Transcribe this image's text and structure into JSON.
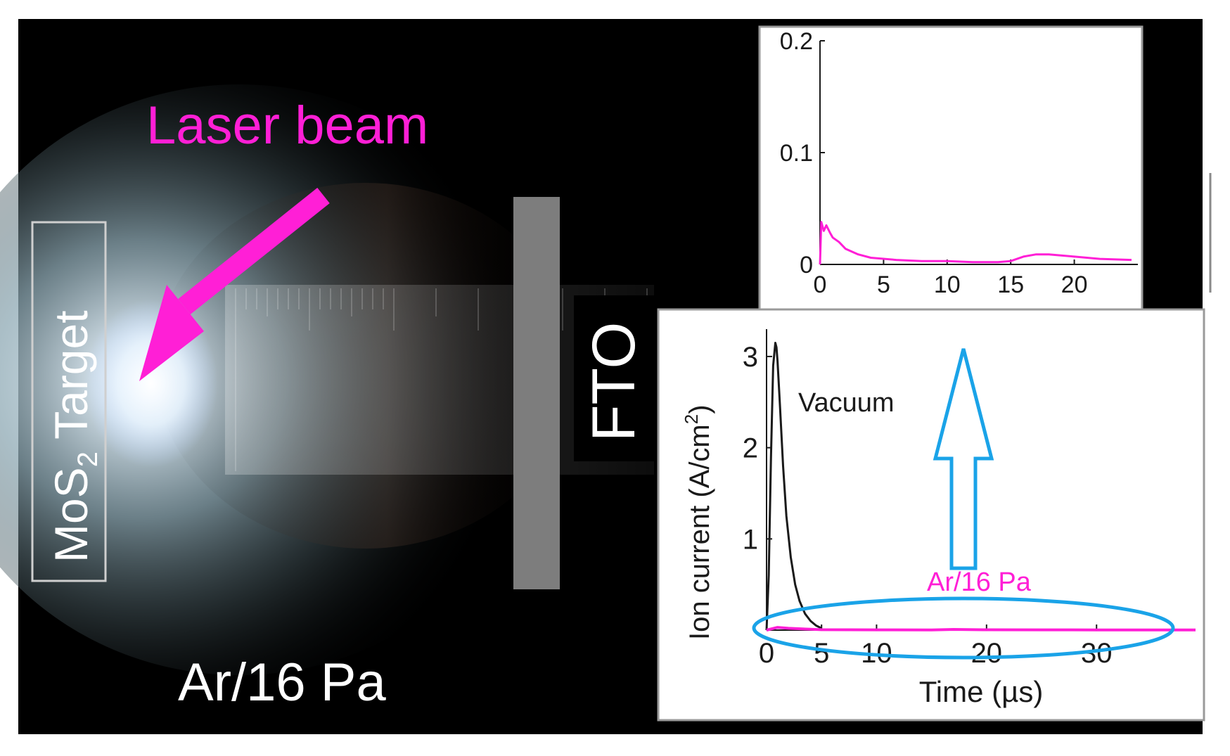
{
  "labels": {
    "laser": "Laser beam",
    "target_main": "MoS",
    "target_sub": "2",
    "target_word": "Target",
    "fto": "FTO",
    "pressure": "Ar/16 Pa"
  },
  "colors": {
    "laser": "#ff1fd6",
    "panel_border": "#9a9a9a",
    "substrate": "#7d7d7d",
    "vacuum_trace": "#1a1a1a",
    "argon_trace": "#ff1fd6",
    "annotation": "#1aa3e8"
  },
  "chart_data": [
    {
      "type": "line",
      "title": "",
      "xlabel": "Time (µs)",
      "ylabel": "Ion current (A/cm²)",
      "ylabel_main": "Ion current (A/cm",
      "ylabel_sup": "2",
      "ylabel_end": ")",
      "xlim": [
        0,
        39
      ],
      "ylim": [
        0,
        3.3
      ],
      "xticks": [
        "0",
        "10",
        "20",
        "30"
      ],
      "xtick_values": [
        0,
        10,
        20,
        30
      ],
      "xtick_5": "5",
      "yticks": [
        "1",
        "2",
        "3"
      ],
      "ytick_values": [
        1,
        2,
        3
      ],
      "grid": false,
      "series": [
        {
          "name": "Vacuum",
          "x": [
            0,
            0.2,
            0.4,
            0.6,
            0.8,
            0.9,
            1.0,
            1.2,
            1.5,
            1.8,
            2.2,
            2.6,
            3.0,
            3.5,
            4.0,
            4.5,
            5.0
          ],
          "y": [
            0,
            0.6,
            1.9,
            2.9,
            3.15,
            3.1,
            2.95,
            2.5,
            1.8,
            1.25,
            0.8,
            0.5,
            0.32,
            0.18,
            0.1,
            0.05,
            0.02
          ]
        },
        {
          "name": "Ar/16 Pa",
          "x": [
            0,
            1,
            2,
            5,
            10,
            15,
            17,
            20,
            25,
            30,
            35,
            39
          ],
          "y": [
            0,
            0.03,
            0.02,
            0.005,
            0.003,
            0.002,
            0.008,
            0.004,
            0.003,
            0.002,
            0.002,
            0.002
          ]
        }
      ]
    },
    {
      "type": "line",
      "title": "",
      "xlabel": "",
      "ylabel": "",
      "xlim": [
        0,
        25
      ],
      "ylim": [
        0,
        0.2
      ],
      "xticks": [
        "0",
        "5",
        "10",
        "15",
        "20"
      ],
      "xtick_values": [
        0,
        5,
        10,
        15,
        20
      ],
      "yticks": [
        "0",
        "0.1",
        "0.2"
      ],
      "ytick_values": [
        0,
        0.1,
        0.2
      ],
      "grid": false,
      "series": [
        {
          "name": "Ar/16 Pa",
          "x": [
            0,
            0.1,
            0.3,
            0.5,
            0.8,
            1.0,
            1.5,
            2.0,
            3.0,
            4.0,
            6.0,
            8.0,
            10.0,
            12.0,
            14.0,
            15.0,
            16.0,
            17.0,
            18.0,
            20.0,
            22.0,
            24.5
          ],
          "y": [
            0,
            0.038,
            0.03,
            0.035,
            0.028,
            0.024,
            0.02,
            0.014,
            0.009,
            0.006,
            0.004,
            0.003,
            0.003,
            0.002,
            0.002,
            0.003,
            0.007,
            0.009,
            0.009,
            0.007,
            0.005,
            0.004
          ]
        }
      ]
    }
  ]
}
